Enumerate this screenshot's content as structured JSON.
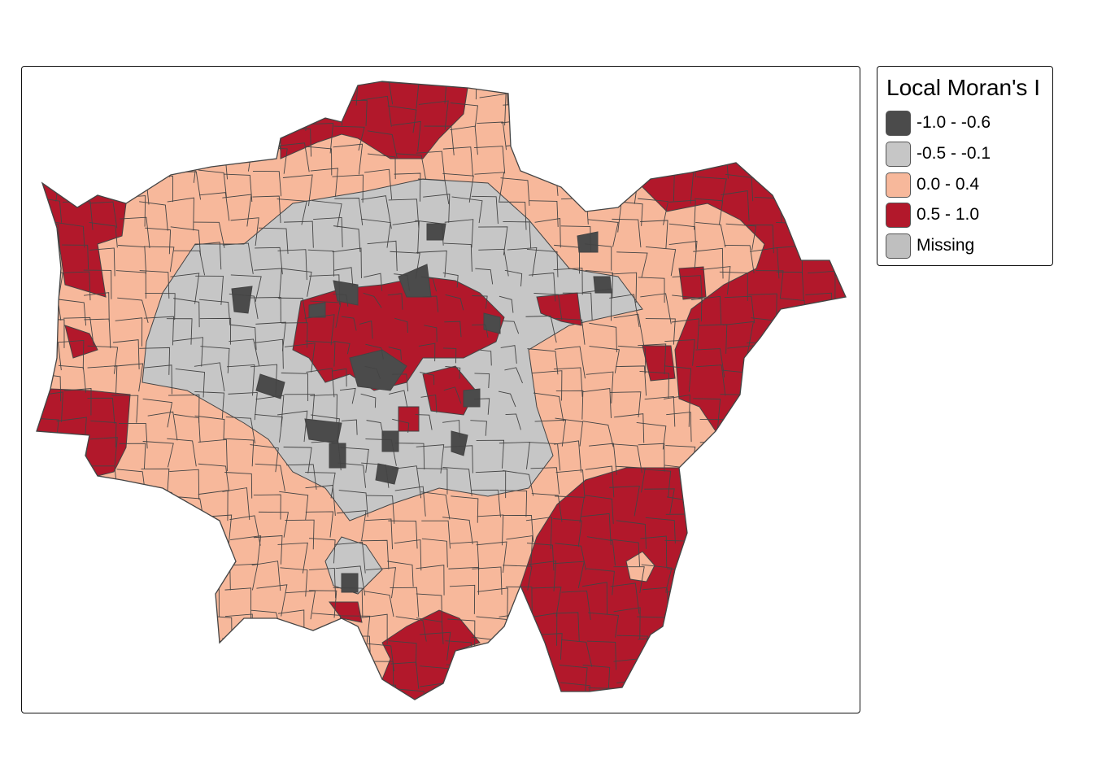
{
  "map": {
    "type": "choropleth",
    "region": "London wards",
    "colors": {
      "neg_strong": "#4b4b4b",
      "neg_weak": "#c6c6c6",
      "pos_weak": "#f7b89b",
      "pos_strong": "#b2182b",
      "missing": "#bfbfbf",
      "border": "#444444"
    }
  },
  "legend": {
    "title": "Local Moran's I",
    "items": [
      {
        "label": "-1.0 - -0.6",
        "color": "#4b4b4b"
      },
      {
        "label": "-0.5 - -0.1",
        "color": "#c6c6c6"
      },
      {
        "label": "0.0 - 0.4",
        "color": "#f7b89b"
      },
      {
        "label": "0.5 - 1.0",
        "color": "#b2182b"
      },
      {
        "label": "Missing",
        "color": "#bfbfbf"
      }
    ]
  }
}
